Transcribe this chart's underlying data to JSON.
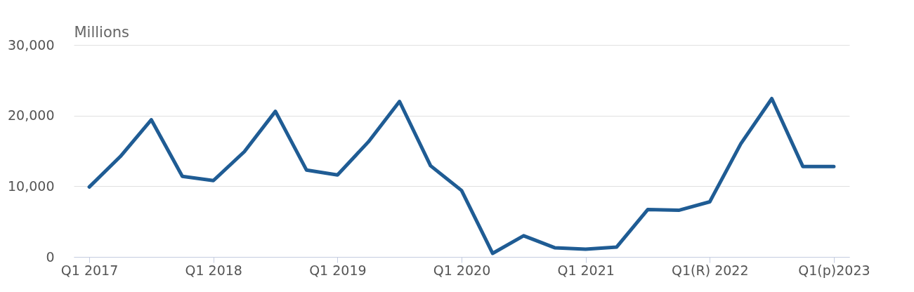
{
  "chart_data": {
    "type": "line",
    "ylabel": "Millions",
    "categories": [
      "Q1 2017",
      null,
      null,
      null,
      "Q1 2018",
      null,
      null,
      null,
      "Q1 2019",
      null,
      null,
      null,
      "Q1 2020",
      null,
      null,
      null,
      "Q1 2021",
      null,
      null,
      null,
      "Q1(R) 2022",
      null,
      null,
      null,
      "Q1(p)2023"
    ],
    "series": [
      {
        "color": "#1f5c94",
        "values": [
          9900,
          14200,
          19400,
          11400,
          10800,
          14900,
          20600,
          12300,
          11600,
          16300,
          22000,
          12900,
          9400,
          500,
          3000,
          1300,
          1100,
          1400,
          6700,
          6600,
          7800,
          16000,
          22400,
          12800,
          12800
        ]
      }
    ],
    "ylim": [
      0,
      30000
    ],
    "yticks": [
      0,
      {
        "value": 10000,
        "label": "10,000"
      },
      {
        "value": 20000,
        "label": "20,000"
      },
      {
        "value": 30000,
        "label": "30,000"
      }
    ],
    "grid": "y",
    "marker": "none",
    "line_style": "solid"
  }
}
